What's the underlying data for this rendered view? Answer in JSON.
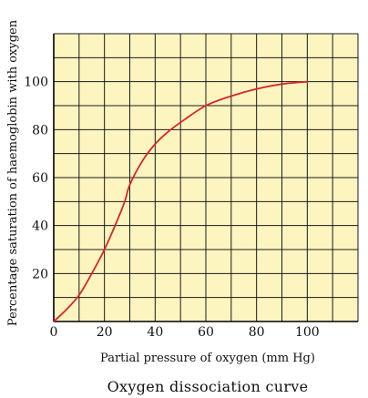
{
  "chart_data": {
    "type": "line",
    "caption": "Oxygen dissociation curve",
    "xlabel": "Partial pressure of oxygen (mm Hg)",
    "ylabel": "Percentage saturation of haemoglobin with oxygen",
    "xlim": [
      0,
      120
    ],
    "ylim": [
      0,
      120
    ],
    "x_ticks": [
      0,
      20,
      40,
      60,
      80,
      100
    ],
    "y_ticks": [
      20,
      40,
      60,
      80,
      100
    ],
    "grid": true,
    "background_color": "#fdf5c0",
    "grid_color": "#1a1a1a",
    "series": [
      {
        "color": "#d9242a",
        "x": [
          0,
          5,
          10,
          15,
          20,
          25,
          28,
          30,
          35,
          40,
          45,
          50,
          60,
          70,
          80,
          90,
          100
        ],
        "y": [
          0,
          5,
          11,
          20,
          30,
          42,
          50,
          57,
          67,
          74,
          79,
          83,
          90,
          94,
          97,
          99,
          100
        ]
      }
    ]
  }
}
